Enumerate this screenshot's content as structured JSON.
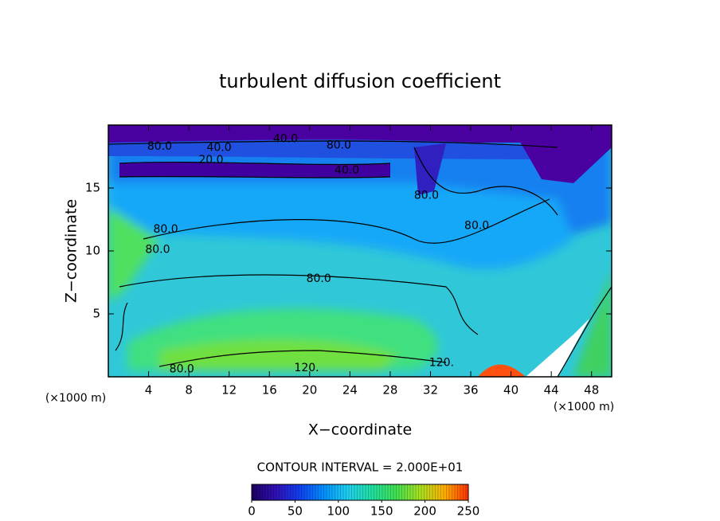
{
  "chart_data": {
    "type": "contour",
    "title": "turbulent diffusion coefficient",
    "x_label": "X−coordinate",
    "y_label": "Z−coordinate",
    "x_unit": "(×1000 m)",
    "y_unit": "(×1000 m)",
    "xlim": [
      0,
      50
    ],
    "ylim": [
      0,
      20
    ],
    "xticks": [
      4,
      8,
      12,
      16,
      20,
      24,
      28,
      32,
      36,
      40,
      44,
      48
    ],
    "yticks": [
      5,
      10,
      15
    ],
    "contour_interval_text": "CONTOUR INTERVAL = 2.000E+01",
    "clim": [
      0,
      250
    ],
    "colorbar_ticks": [
      0,
      50,
      100,
      150,
      200,
      250
    ],
    "colormap": [
      "#1a0060",
      "#3010b8",
      "#1040f0",
      "#0090ff",
      "#20d0f0",
      "#20e0a0",
      "#40e050",
      "#a8e020",
      "#ffb000",
      "#ff3000"
    ],
    "annotations": [
      {
        "text": "80.0",
        "x": 5.1,
        "y": 18.3
      },
      {
        "text": "40.0",
        "x": 11.0,
        "y": 18.2
      },
      {
        "text": "40.0",
        "x": 17.6,
        "y": 18.9
      },
      {
        "text": "80.0",
        "x": 22.9,
        "y": 18.4
      },
      {
        "text": "20.0",
        "x": 10.2,
        "y": 17.2
      },
      {
        "text": "40.0",
        "x": 23.7,
        "y": 16.4
      },
      {
        "text": "80.0",
        "x": 31.6,
        "y": 14.4
      },
      {
        "text": "80.0",
        "x": 36.6,
        "y": 12.0
      },
      {
        "text": "80.0",
        "x": 5.7,
        "y": 11.7
      },
      {
        "text": "80.0",
        "x": 4.9,
        "y": 10.1
      },
      {
        "text": "80.0",
        "x": 20.9,
        "y": 7.8
      },
      {
        "text": "120.",
        "x": 19.7,
        "y": 0.7
      },
      {
        "text": "120.",
        "x": 33.1,
        "y": 1.1
      },
      {
        "text": "80.0",
        "x": 7.3,
        "y": 0.6
      }
    ]
  }
}
